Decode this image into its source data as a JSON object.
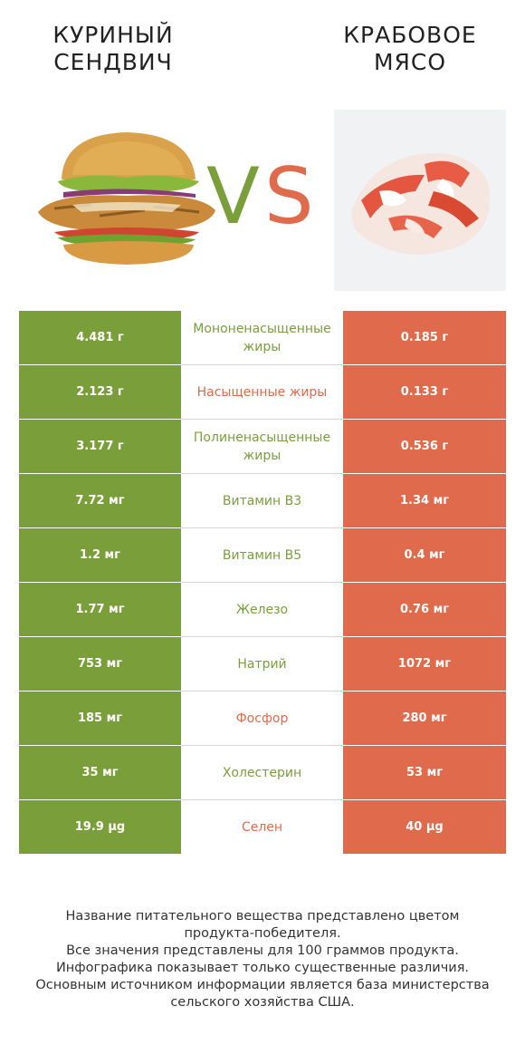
{
  "left_product": {
    "title_line1": "КУРИНЫЙ",
    "title_line2": "СЕНДВИЧ"
  },
  "right_product": {
    "title_line1": "КРАБОВОЕ",
    "title_line2": "МЯСО"
  },
  "vs": {
    "v": "V",
    "s": "S"
  },
  "colors": {
    "left": "#7a9f3a",
    "right": "#e06a4c"
  },
  "rows": [
    {
      "left": "4.481 г",
      "name": "Мононенасыщенные жиры",
      "right": "0.185 г",
      "winner": "left"
    },
    {
      "left": "2.123 г",
      "name": "Насыщенные жиры",
      "right": "0.133 г",
      "winner": "right"
    },
    {
      "left": "3.177 г",
      "name": "Полиненасыщенные жиры",
      "right": "0.536 г",
      "winner": "left"
    },
    {
      "left": "7.72 мг",
      "name": "Витамин B3",
      "right": "1.34 мг",
      "winner": "left"
    },
    {
      "left": "1.2 мг",
      "name": "Витамин B5",
      "right": "0.4 мг",
      "winner": "left"
    },
    {
      "left": "1.77 мг",
      "name": "Железо",
      "right": "0.76 мг",
      "winner": "left"
    },
    {
      "left": "753 мг",
      "name": "Натрий",
      "right": "1072 мг",
      "winner": "left"
    },
    {
      "left": "185 мг",
      "name": "Фосфор",
      "right": "280 мг",
      "winner": "right"
    },
    {
      "left": "35 мг",
      "name": "Холестерин",
      "right": "53 мг",
      "winner": "left"
    },
    {
      "left": "19.9 µg",
      "name": "Селен",
      "right": "40 µg",
      "winner": "right"
    }
  ],
  "footer": {
    "line1": "Название питательного вещества представлено цветом",
    "line2": "продукта-победителя.",
    "line3": "Все значения представлены для 100 граммов продукта.",
    "line4": "Инфографика показывает только существенные различия.",
    "line5": "Основным источником информации является база министерства",
    "line6": "сельского хозяйства США."
  }
}
